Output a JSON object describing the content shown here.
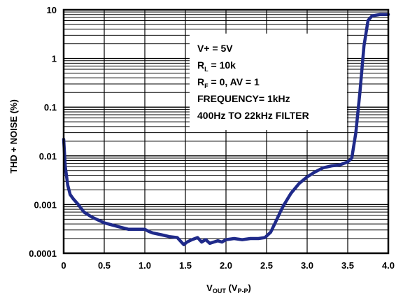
{
  "chart_data": {
    "type": "line",
    "xlabel": {
      "main": "V",
      "sub1": "OUT",
      "mid": " (V",
      "sub2": "P-P",
      "end": ")"
    },
    "ylabel": "THD + NOISE (%)",
    "xlim": [
      0,
      4.0
    ],
    "ylim": [
      0.0001,
      10
    ],
    "yscale": "log",
    "x_ticks": [
      "0",
      "0.5",
      "1.0",
      "1.5",
      "2.0",
      "2.5",
      "3.0",
      "3.5",
      "4.0"
    ],
    "y_ticks": [
      "10",
      "1",
      "0.1",
      "0.01",
      "0.001",
      "0.0001"
    ],
    "grid": true,
    "series_color": "#1f2a8a",
    "annotation_lines": [
      {
        "main": "V+ = 5V"
      },
      {
        "main": "R",
        "sub": "L",
        "rest": " = 10k"
      },
      {
        "main": "R",
        "sub": "F",
        "rest": " = 0, AV = 1"
      },
      {
        "main": "FREQUENCY= 1kHz"
      },
      {
        "main": "400Hz TO 22kHz FILTER"
      }
    ],
    "series": [
      {
        "x": [
          0.0,
          0.02,
          0.05,
          0.08,
          0.12,
          0.18,
          0.25,
          0.35,
          0.5,
          0.65,
          0.8,
          0.9,
          1.0,
          1.05,
          1.1,
          1.2,
          1.3,
          1.4,
          1.45,
          1.48,
          1.52,
          1.58,
          1.65,
          1.7,
          1.75,
          1.8,
          1.85,
          1.9,
          1.95,
          2.0,
          2.1,
          2.2,
          2.3,
          2.4,
          2.48,
          2.55,
          2.6,
          2.65,
          2.7,
          2.8,
          2.9,
          3.0,
          3.1,
          3.2,
          3.3,
          3.4,
          3.45,
          3.5,
          3.55,
          3.6,
          3.65,
          3.7,
          3.75,
          3.8,
          3.9,
          4.0
        ],
        "y": [
          0.022,
          0.006,
          0.0025,
          0.0016,
          0.0013,
          0.001,
          0.0007,
          0.00055,
          0.00042,
          0.00036,
          0.00031,
          0.00031,
          0.00031,
          0.00028,
          0.00026,
          0.00024,
          0.00022,
          0.00021,
          0.00017,
          0.00015,
          0.00017,
          0.00019,
          0.00021,
          0.00017,
          0.00019,
          0.00016,
          0.00017,
          0.00018,
          0.00017,
          0.00019,
          0.0002,
          0.00019,
          0.0002,
          0.0002,
          0.00021,
          0.00027,
          0.0004,
          0.0006,
          0.0009,
          0.0017,
          0.0027,
          0.0037,
          0.0047,
          0.0057,
          0.0062,
          0.0065,
          0.007,
          0.0075,
          0.009,
          0.03,
          0.2,
          1.8,
          6.0,
          7.5,
          8.0,
          8.0
        ]
      }
    ]
  }
}
